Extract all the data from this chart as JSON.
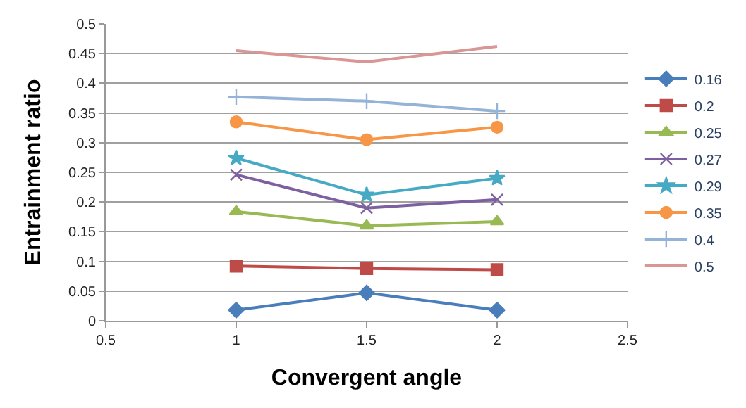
{
  "chart_data": {
    "type": "line",
    "xlabel": "Convergent angle",
    "ylabel": "Entrainment ratio",
    "x": [
      1,
      1.5,
      2
    ],
    "series": [
      {
        "name": "0.16",
        "color": "#4a7ebb",
        "marker": "diamond",
        "values": [
          0.018,
          0.047,
          0.018
        ]
      },
      {
        "name": "0.2",
        "color": "#be4b48",
        "marker": "square",
        "values": [
          0.092,
          0.088,
          0.086
        ]
      },
      {
        "name": "0.25",
        "color": "#98b954",
        "marker": "triangle",
        "values": [
          0.184,
          0.16,
          0.167
        ]
      },
      {
        "name": "0.27",
        "color": "#7d60a0",
        "marker": "cross",
        "values": [
          0.246,
          0.19,
          0.204
        ]
      },
      {
        "name": "0.29",
        "color": "#46aac5",
        "marker": "star",
        "values": [
          0.274,
          0.212,
          0.24
        ]
      },
      {
        "name": "0.35",
        "color": "#f79646",
        "marker": "circle",
        "values": [
          0.335,
          0.305,
          0.326
        ]
      },
      {
        "name": "0.4",
        "color": "#95b3d7",
        "marker": "cross",
        "values": [
          0.377,
          0.37,
          0.353
        ]
      },
      {
        "name": "0.5",
        "color": "#d99694",
        "marker": "none",
        "values": [
          0.455,
          0.436,
          0.462
        ]
      }
    ],
    "xlim": [
      0.5,
      2.5
    ],
    "xticks": [
      0.5,
      1,
      1.5,
      2,
      2.5
    ],
    "ylim": [
      0,
      0.5
    ],
    "yticks": [
      0,
      0.05,
      0.1,
      0.15,
      0.2,
      0.25,
      0.3,
      0.35,
      0.4,
      0.45,
      0.5
    ],
    "grid": "y",
    "legend": "right",
    "line_style": "solid"
  }
}
